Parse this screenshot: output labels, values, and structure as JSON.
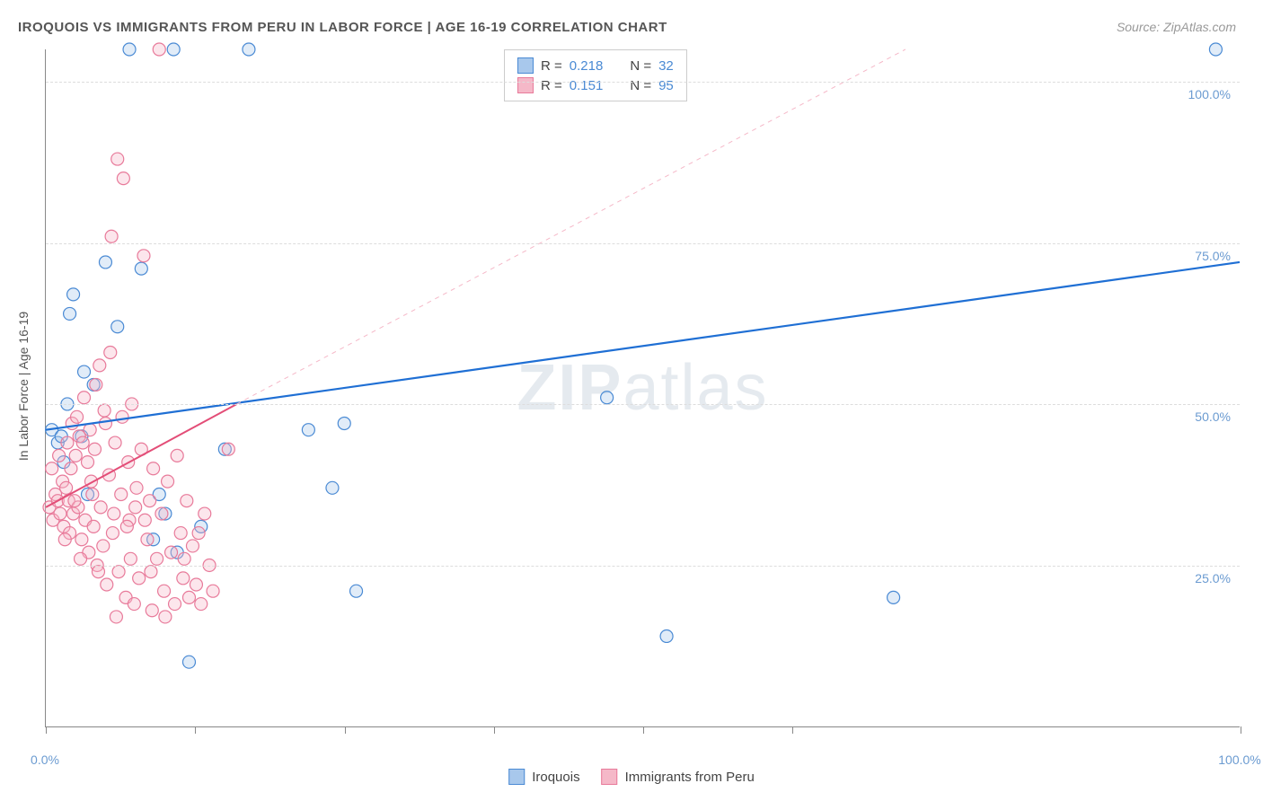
{
  "title": "IROQUOIS VS IMMIGRANTS FROM PERU IN LABOR FORCE | AGE 16-19 CORRELATION CHART",
  "source": "Source: ZipAtlas.com",
  "y_axis_title": "In Labor Force | Age 16-19",
  "watermark": "ZIPatlas",
  "chart": {
    "type": "scatter",
    "xlim": [
      0,
      100
    ],
    "ylim": [
      0,
      105
    ],
    "y_ticks": [
      25,
      50,
      75,
      100
    ],
    "y_tick_labels": [
      "25.0%",
      "50.0%",
      "75.0%",
      "100.0%"
    ],
    "x_ticks": [
      0,
      12.5,
      25,
      37.5,
      50,
      62.5,
      100
    ],
    "x_tick_labels_shown": {
      "0": "0.0%",
      "100": "100.0%"
    },
    "background_color": "#ffffff",
    "grid_color": "#dddddd",
    "grid_dash": "4,4",
    "axis_color": "#888888",
    "marker_radius": 7,
    "marker_stroke_width": 1.2,
    "marker_fill_opacity": 0.35,
    "series": [
      {
        "name": "Iroquois",
        "color_stroke": "#4a8ad4",
        "color_fill": "#a8c8ec",
        "R": "0.218",
        "N": "32",
        "trend": {
          "x1": 0,
          "y1": 46,
          "x2": 100,
          "y2": 72,
          "width": 2.2,
          "dash": "none",
          "color": "#1f6fd4"
        },
        "trend_ext": null,
        "points": [
          [
            0.5,
            46
          ],
          [
            1,
            44
          ],
          [
            1.3,
            45
          ],
          [
            1.5,
            41
          ],
          [
            1.8,
            50
          ],
          [
            2,
            64
          ],
          [
            2.3,
            67
          ],
          [
            3,
            45
          ],
          [
            3.2,
            55
          ],
          [
            3.5,
            36
          ],
          [
            4,
            53
          ],
          [
            5,
            72
          ],
          [
            6,
            62
          ],
          [
            7,
            105
          ],
          [
            8,
            71
          ],
          [
            9,
            29
          ],
          [
            9.5,
            36
          ],
          [
            10,
            33
          ],
          [
            10.7,
            105
          ],
          [
            11,
            27
          ],
          [
            12,
            10
          ],
          [
            13,
            31
          ],
          [
            15,
            43
          ],
          [
            17,
            105
          ],
          [
            22,
            46
          ],
          [
            24,
            37
          ],
          [
            25,
            47
          ],
          [
            26,
            21
          ],
          [
            47,
            51
          ],
          [
            52,
            14
          ],
          [
            71,
            20
          ],
          [
            98,
            105
          ]
        ]
      },
      {
        "name": "Immigrants from Peru",
        "color_stroke": "#e87a9a",
        "color_fill": "#f5b8c8",
        "R": "0.151",
        "N": "95",
        "trend": {
          "x1": 0,
          "y1": 34,
          "x2": 16,
          "y2": 50,
          "width": 2,
          "dash": "none",
          "color": "#e34d77"
        },
        "trend_ext": {
          "x1": 16,
          "y1": 50,
          "x2": 72,
          "y2": 105,
          "width": 1,
          "dash": "5,5",
          "color": "#f5b8c8"
        },
        "points": [
          [
            0.3,
            34
          ],
          [
            0.6,
            32
          ],
          [
            0.8,
            36
          ],
          [
            1,
            35
          ],
          [
            1.2,
            33
          ],
          [
            1.4,
            38
          ],
          [
            1.5,
            31
          ],
          [
            1.7,
            37
          ],
          [
            1.9,
            35
          ],
          [
            2,
            30
          ],
          [
            2.1,
            40
          ],
          [
            2.3,
            33
          ],
          [
            2.5,
            42
          ],
          [
            2.7,
            34
          ],
          [
            2.8,
            45
          ],
          [
            3,
            29
          ],
          [
            3.1,
            44
          ],
          [
            3.3,
            32
          ],
          [
            3.5,
            41
          ],
          [
            3.6,
            27
          ],
          [
            3.8,
            38
          ],
          [
            4,
            31
          ],
          [
            4.1,
            43
          ],
          [
            4.3,
            25
          ],
          [
            4.5,
            56
          ],
          [
            4.6,
            34
          ],
          [
            4.8,
            28
          ],
          [
            5,
            47
          ],
          [
            5.1,
            22
          ],
          [
            5.3,
            39
          ],
          [
            5.5,
            76
          ],
          [
            5.6,
            30
          ],
          [
            5.8,
            44
          ],
          [
            6,
            88
          ],
          [
            6.1,
            24
          ],
          [
            6.3,
            36
          ],
          [
            6.5,
            85
          ],
          [
            6.7,
            20
          ],
          [
            6.9,
            41
          ],
          [
            7,
            32
          ],
          [
            7.2,
            50
          ],
          [
            7.4,
            19
          ],
          [
            7.6,
            37
          ],
          [
            7.8,
            23
          ],
          [
            8,
            43
          ],
          [
            8.2,
            73
          ],
          [
            8.5,
            29
          ],
          [
            8.7,
            35
          ],
          [
            8.9,
            18
          ],
          [
            9,
            40
          ],
          [
            9.3,
            26
          ],
          [
            9.5,
            105
          ],
          [
            9.7,
            33
          ],
          [
            9.9,
            21
          ],
          [
            10.2,
            38
          ],
          [
            10.5,
            27
          ],
          [
            10.8,
            19
          ],
          [
            11,
            42
          ],
          [
            11.3,
            30
          ],
          [
            11.5,
            23
          ],
          [
            11.8,
            35
          ],
          [
            12,
            20
          ],
          [
            12.3,
            28
          ],
          [
            12.6,
            22
          ],
          [
            13,
            19
          ],
          [
            13.3,
            33
          ],
          [
            13.7,
            25
          ],
          [
            14,
            21
          ],
          [
            15.3,
            43
          ],
          [
            3.2,
            51
          ],
          [
            4.2,
            53
          ],
          [
            5.4,
            58
          ],
          [
            2.2,
            47
          ],
          [
            1.8,
            44
          ],
          [
            6.4,
            48
          ],
          [
            0.5,
            40
          ],
          [
            1.1,
            42
          ],
          [
            2.6,
            48
          ],
          [
            3.7,
            46
          ],
          [
            4.9,
            49
          ],
          [
            2.4,
            35
          ],
          [
            3.9,
            36
          ],
          [
            5.7,
            33
          ],
          [
            6.8,
            31
          ],
          [
            7.5,
            34
          ],
          [
            8.3,
            32
          ],
          [
            1.6,
            29
          ],
          [
            2.9,
            26
          ],
          [
            4.4,
            24
          ],
          [
            5.9,
            17
          ],
          [
            7.1,
            26
          ],
          [
            8.8,
            24
          ],
          [
            10,
            17
          ],
          [
            11.6,
            26
          ],
          [
            12.8,
            30
          ]
        ]
      }
    ]
  },
  "legend_top": {
    "rows": [
      {
        "swatch_fill": "#a8c8ec",
        "swatch_stroke": "#4a8ad4",
        "r_label": "R =",
        "r_val": "0.218",
        "n_label": "N =",
        "n_val": "32"
      },
      {
        "swatch_fill": "#f5b8c8",
        "swatch_stroke": "#e87a9a",
        "r_label": "R =",
        "r_val": "0.151",
        "n_label": "N =",
        "n_val": "95"
      }
    ]
  },
  "legend_bottom": {
    "items": [
      {
        "swatch_fill": "#a8c8ec",
        "swatch_stroke": "#4a8ad4",
        "label": "Iroquois"
      },
      {
        "swatch_fill": "#f5b8c8",
        "swatch_stroke": "#e87a9a",
        "label": "Immigrants from Peru"
      }
    ]
  }
}
